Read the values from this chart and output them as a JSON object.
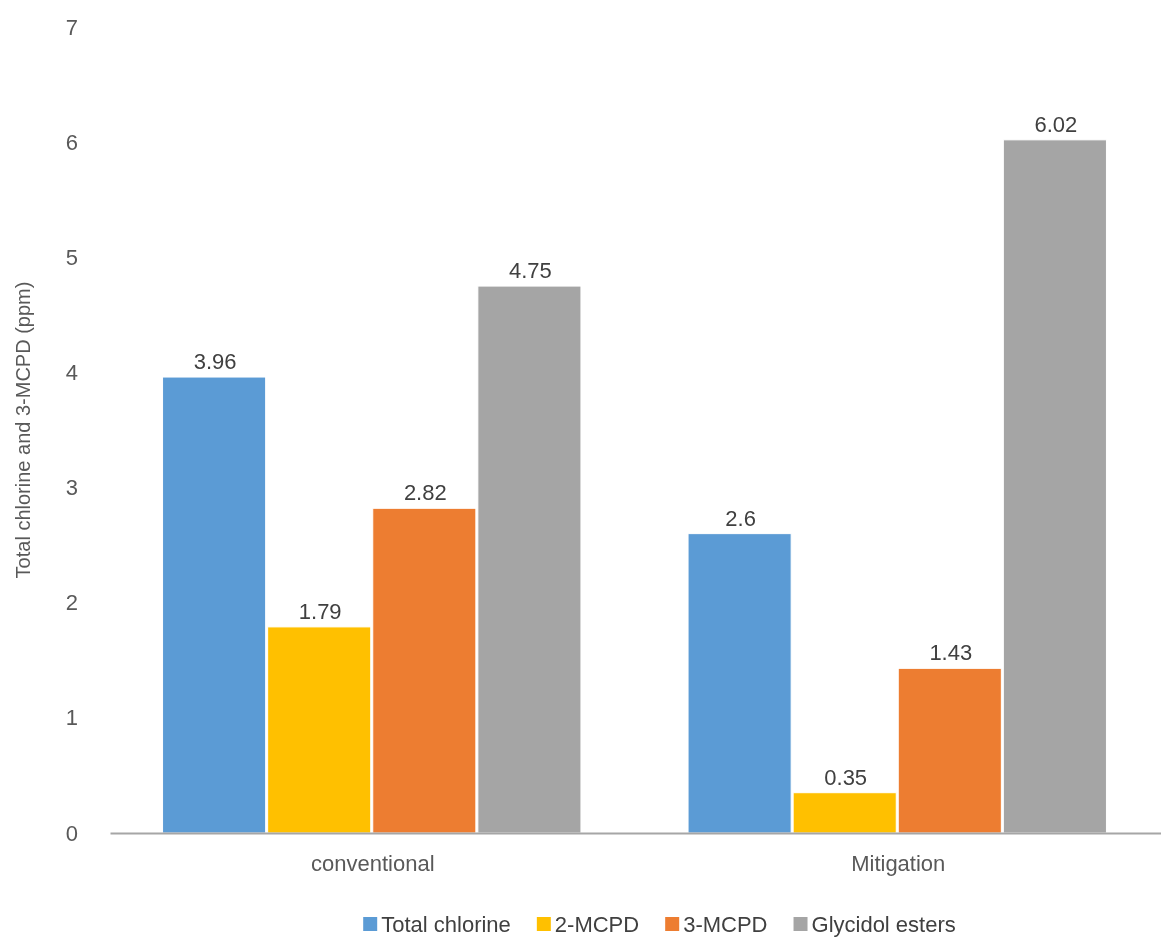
{
  "chart_data": {
    "type": "bar",
    "ylabel": "Total chlorine and 3-MCPD (ppm)",
    "categories": [
      "conventional",
      "Mitigation"
    ],
    "series": [
      {
        "name": "Total chlorine",
        "color": "#5b9bd5",
        "values": [
          3.96,
          2.6
        ]
      },
      {
        "name": "2-MCPD",
        "color": "#ffc000",
        "values": [
          1.79,
          0.35
        ]
      },
      {
        "name": "3-MCPD",
        "color": "#ed7d31",
        "values": [
          2.82,
          1.43
        ]
      },
      {
        "name": "Glycidol esters",
        "color": "#a5a5a5",
        "values": [
          4.75,
          6.02
        ]
      }
    ],
    "ylim": [
      0,
      7
    ],
    "yticks": [
      0,
      1,
      2,
      3,
      4,
      5,
      6,
      7
    ],
    "grid": false,
    "legend": "bottom",
    "data_labels": true
  }
}
